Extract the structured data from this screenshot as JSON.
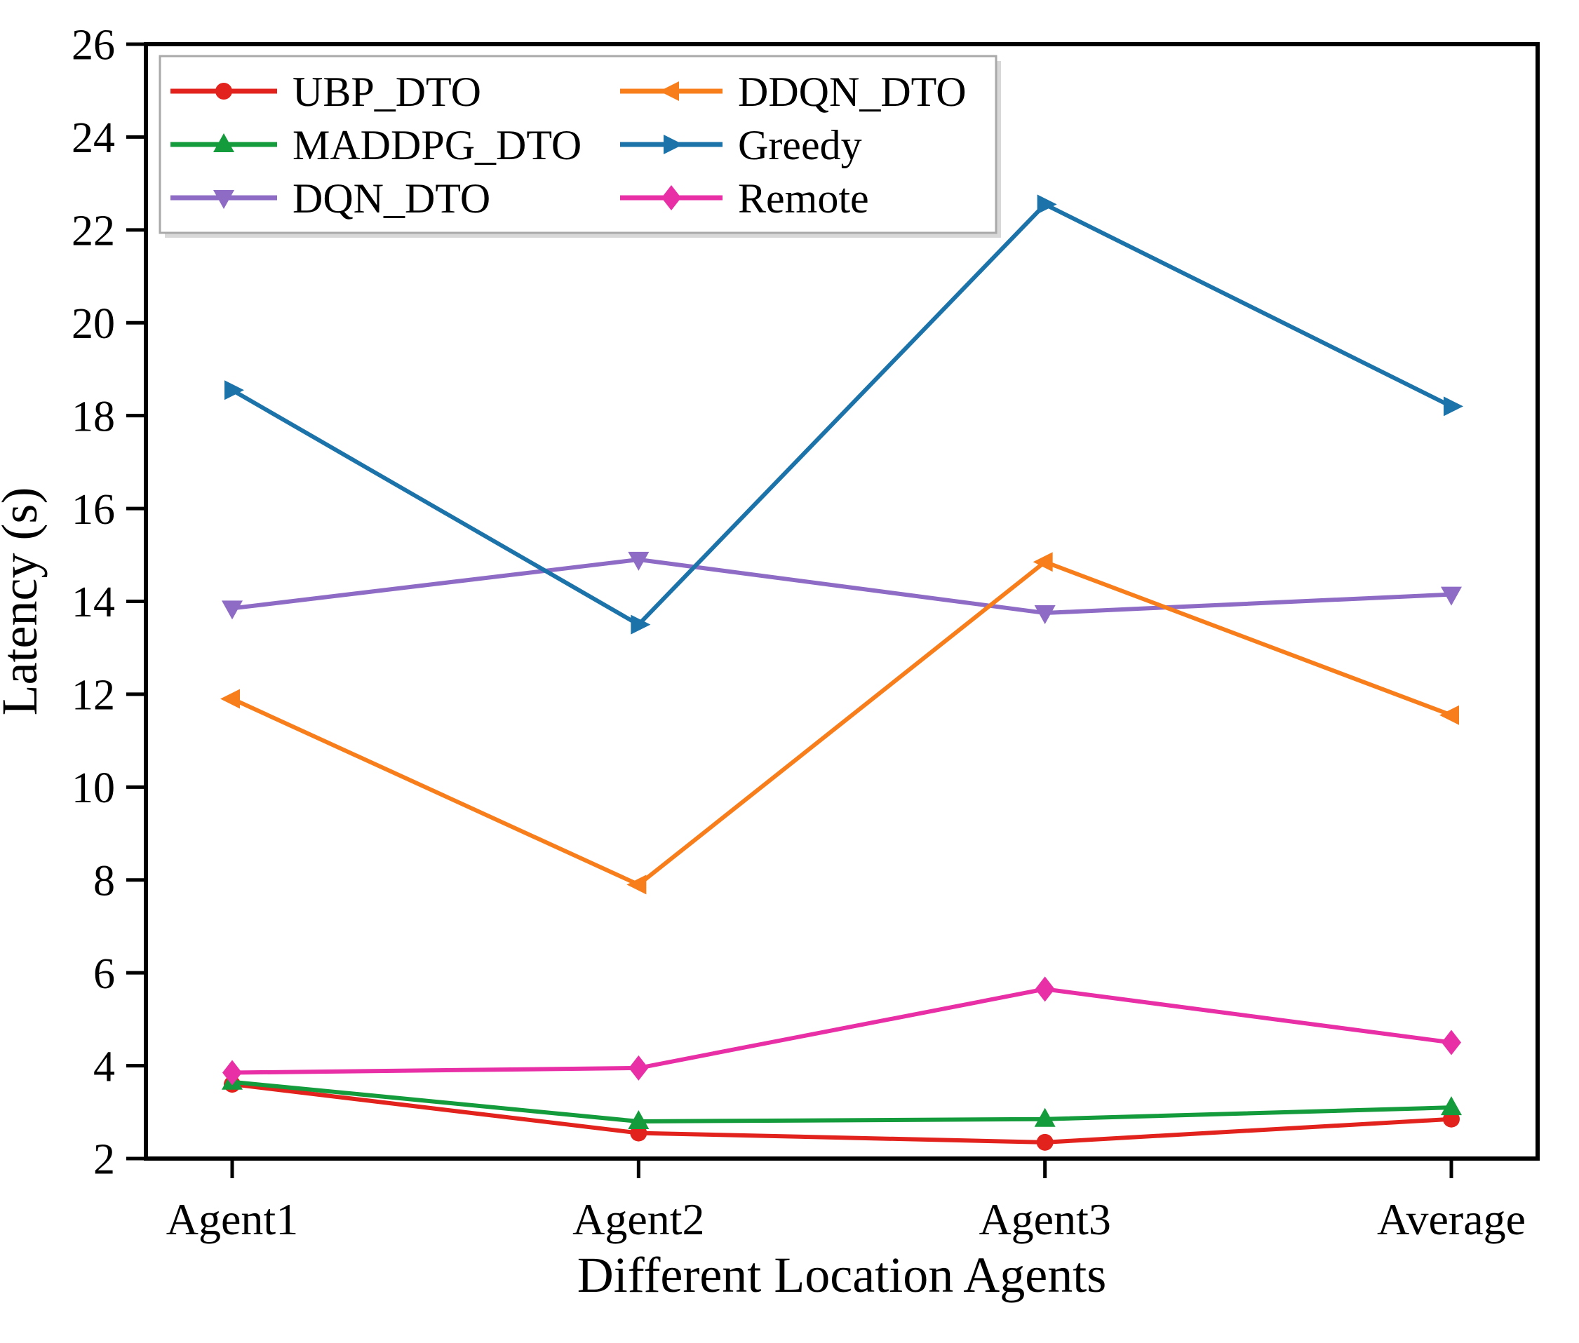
{
  "figure": {
    "xlabel": "Different Location Agents",
    "ylabel": "Latency (s)"
  },
  "chart_data": {
    "type": "line",
    "title": "",
    "xlabel": "Different Location Agents",
    "ylabel": "Latency (s)",
    "categories": [
      "Agent1",
      "Agent2",
      "Agent3",
      "Average"
    ],
    "series": [
      {
        "name": "UBP_DTO",
        "color": "#e2231d",
        "marker": "circle",
        "values": [
          3.6,
          2.55,
          2.35,
          2.85
        ]
      },
      {
        "name": "MADDPG_DTO",
        "color": "#149b3c",
        "marker": "triangle-up",
        "values": [
          3.65,
          2.8,
          2.85,
          3.1
        ]
      },
      {
        "name": "DQN_DTO",
        "color": "#8e6cc6",
        "marker": "triangle-down",
        "values": [
          13.85,
          14.9,
          13.75,
          14.15
        ]
      },
      {
        "name": "DDQN_DTO",
        "color": "#f87e1b",
        "marker": "triangle-left",
        "values": [
          11.9,
          7.9,
          14.85,
          11.55
        ]
      },
      {
        "name": "Greedy",
        "color": "#1b73a9",
        "marker": "triangle-right",
        "values": [
          18.55,
          13.5,
          22.55,
          18.2
        ]
      },
      {
        "name": "Remote",
        "color": "#e82fa6",
        "marker": "diamond",
        "values": [
          3.85,
          3.95,
          5.65,
          4.5
        ]
      }
    ],
    "ylim": [
      2,
      26
    ],
    "ytick_step": 2,
    "ytick_labels": [
      "2",
      "4",
      "6",
      "8",
      "10",
      "12",
      "14",
      "16",
      "18",
      "20",
      "22",
      "24",
      "26"
    ],
    "grid": false,
    "legend_position": "top-left",
    "legend_rows": [
      [
        "UBP_DTO",
        "DDQN_DTO"
      ],
      [
        "MADDPG_DTO",
        "Greedy"
      ],
      [
        "DQN_DTO",
        "Remote"
      ]
    ],
    "axis_color": "#000000",
    "legend_border_color": "#a9a9a9",
    "legend_shadow_color": "#d8d8d8"
  }
}
